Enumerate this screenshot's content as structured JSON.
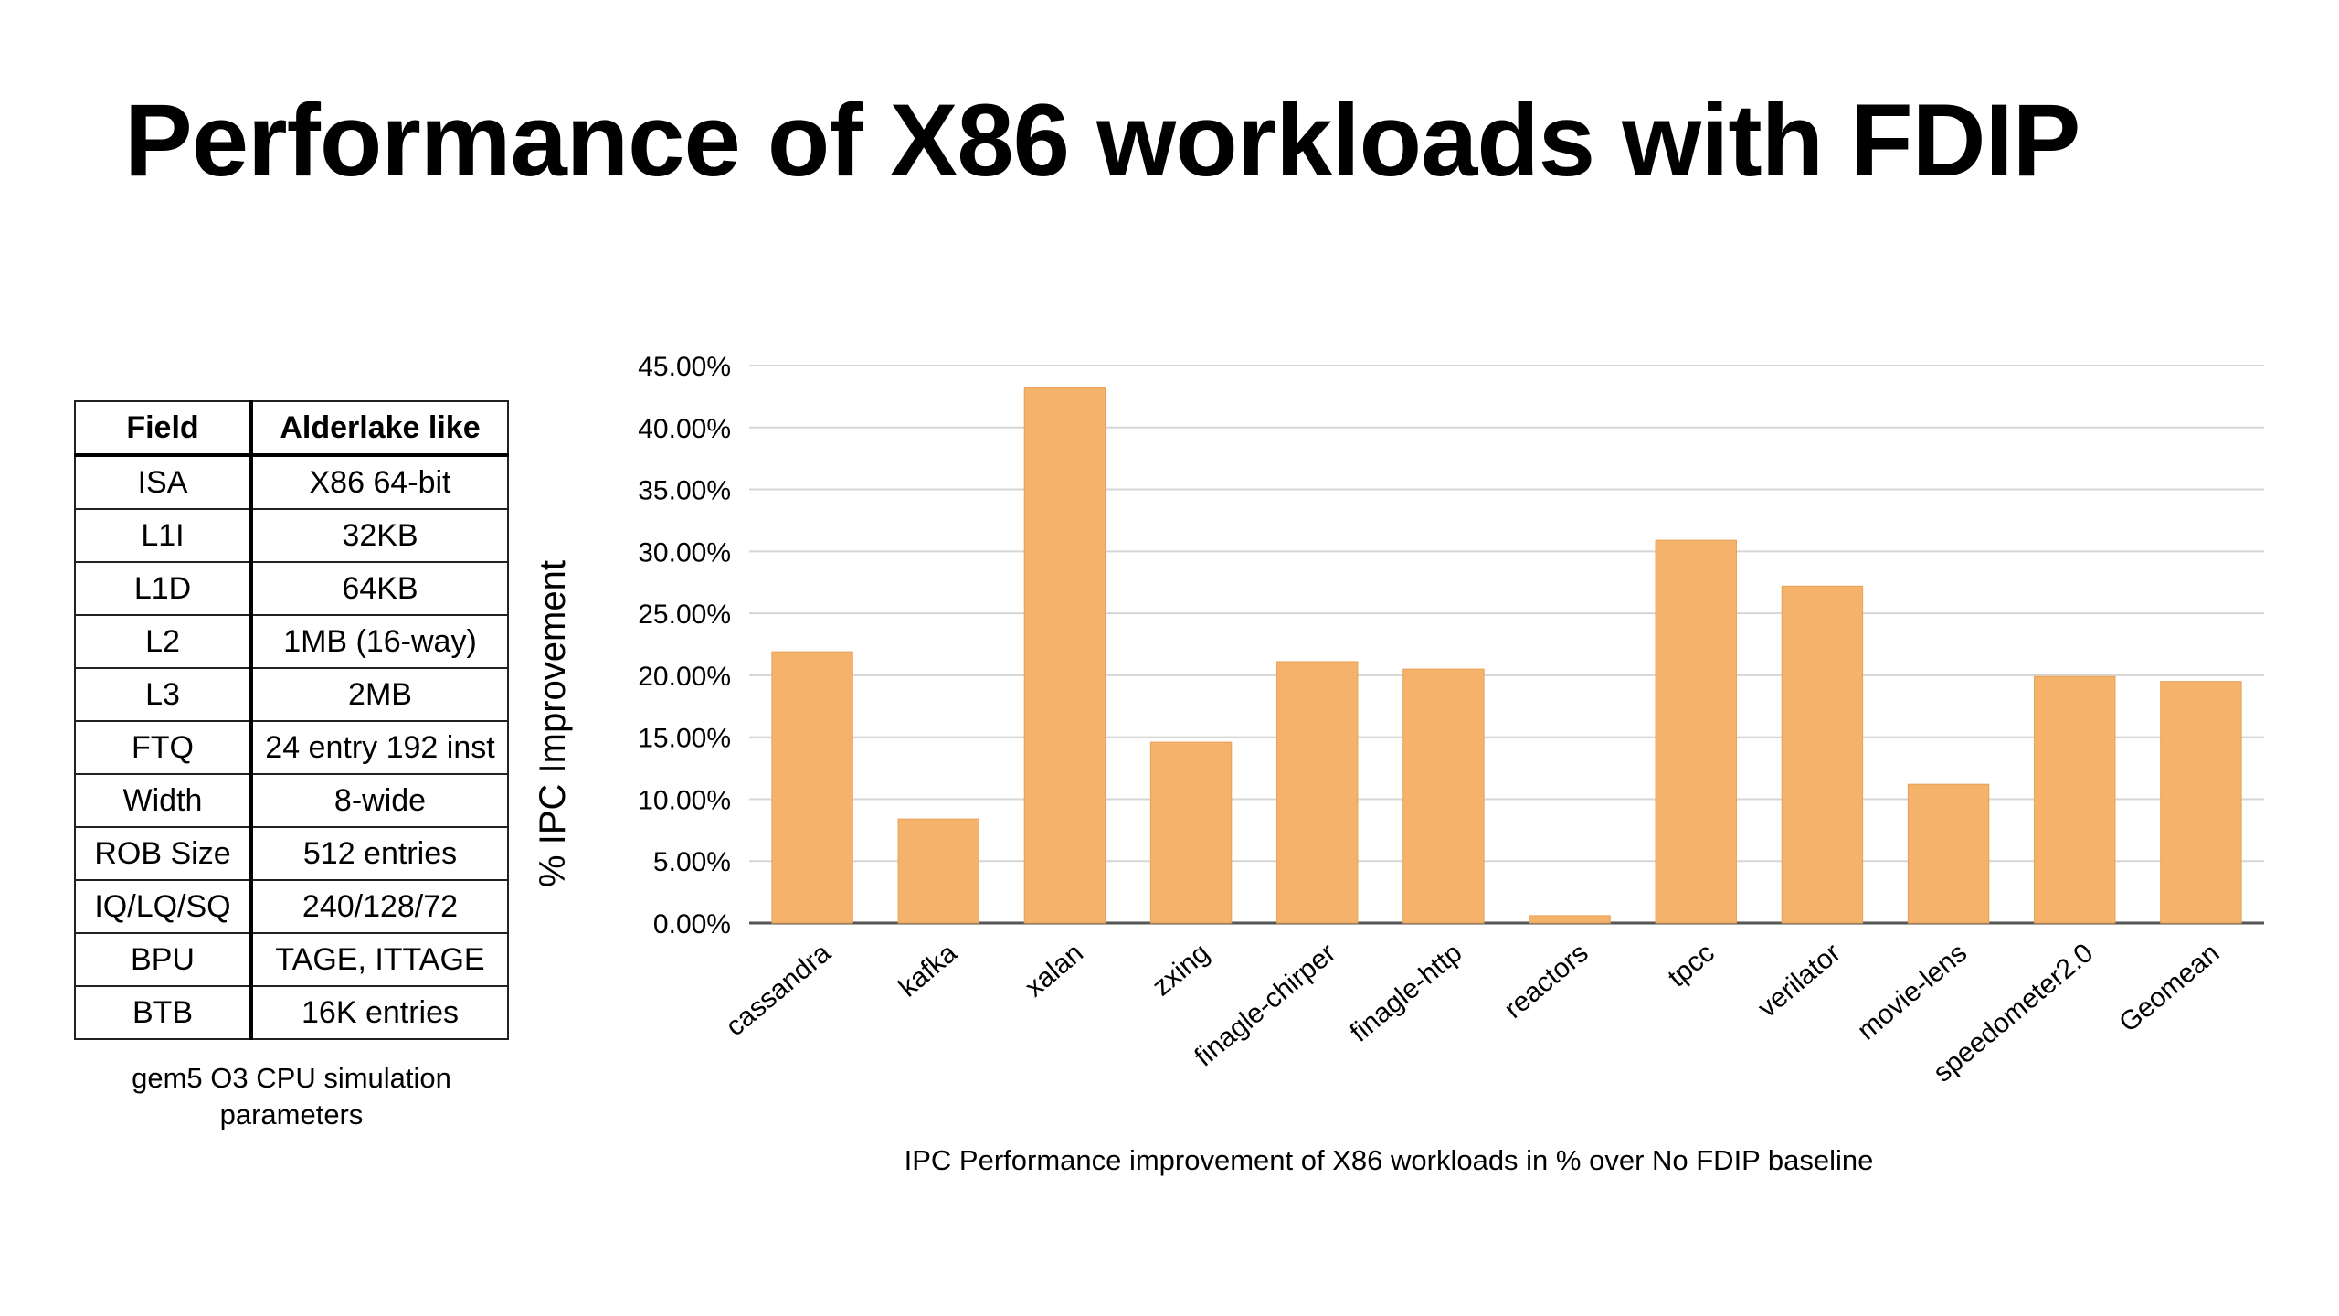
{
  "title": "Performance of X86 workloads with FDIP",
  "table": {
    "headers": [
      "Field",
      "Alderlake like"
    ],
    "rows": [
      [
        "ISA",
        "X86 64-bit"
      ],
      [
        "L1I",
        "32KB"
      ],
      [
        "L1D",
        "64KB"
      ],
      [
        "L2",
        "1MB (16-way)"
      ],
      [
        "L3",
        "2MB"
      ],
      [
        "FTQ",
        "24 entry 192 inst"
      ],
      [
        "Width",
        "8-wide"
      ],
      [
        "ROB Size",
        "512 entries"
      ],
      [
        "IQ/LQ/SQ",
        "240/128/72"
      ],
      [
        "BPU",
        "TAGE, ITTAGE"
      ],
      [
        "BTB",
        "16K entries"
      ]
    ],
    "caption": "gem5 O3 CPU simulation parameters"
  },
  "chart_data": {
    "type": "bar",
    "categories": [
      "cassandra",
      "kafka",
      "xalan",
      "zxing",
      "finagle-chirper",
      "finagle-http",
      "reactors",
      "tpcc",
      "verilator",
      "movie-lens",
      "speedometer2.0",
      "Geomean"
    ],
    "values": [
      21.9,
      8.4,
      43.2,
      14.6,
      21.1,
      20.5,
      0.6,
      30.9,
      27.2,
      11.2,
      19.9,
      19.5
    ],
    "ylabel": "% IPC Improvement",
    "xlabel": "IPC Performance improvement of X86 workloads in % over No FDIP baseline",
    "yticks": [
      "0.00%",
      "5.00%",
      "10.00%",
      "15.00%",
      "20.00%",
      "25.00%",
      "30.00%",
      "35.00%",
      "40.00%",
      "45.00%"
    ],
    "ylim": [
      0,
      45
    ],
    "grid": true,
    "bar_color": "#f5b26b"
  }
}
